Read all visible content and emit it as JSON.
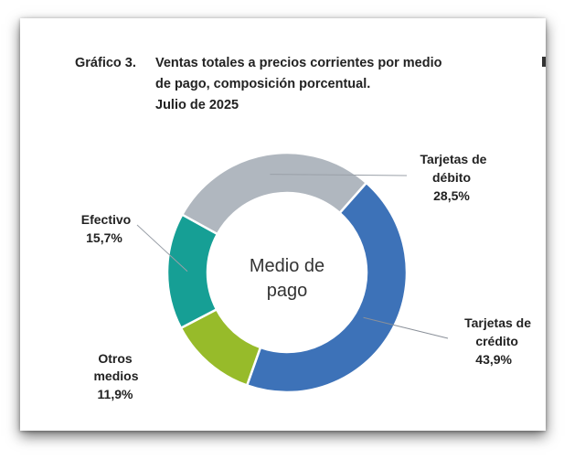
{
  "title": {
    "number": "Gráfico 3.",
    "lines": [
      "Ventas totales a precios corrientes por medio",
      "de pago, composición porcentual.",
      "Julio de 2025"
    ]
  },
  "center_label": [
    "Medio de",
    "pago"
  ],
  "chart_data": {
    "type": "pie",
    "donut": true,
    "title": "Ventas totales a precios corrientes por medio de pago, composición porcentual. Julio de 2025",
    "categories": [
      "Tarjetas de crédito",
      "Otros medios",
      "Efectivo",
      "Tarjetas de débito"
    ],
    "values": [
      43.9,
      11.9,
      15.7,
      28.5
    ],
    "value_labels": [
      "43,9%",
      "11,9%",
      "15,7%",
      "28,5%"
    ],
    "colors": [
      "#3d72b8",
      "#97bb2a",
      "#169f95",
      "#b0b7bf"
    ],
    "center_text": "Medio de pago",
    "labels": [
      {
        "name_lines": [
          "Tarjetas de",
          "crédito"
        ],
        "value": "43,9%"
      },
      {
        "name_lines": [
          "Otros",
          "medios"
        ],
        "value": "11,9%"
      },
      {
        "name_lines": [
          "Efectivo"
        ],
        "value": "15,7%"
      },
      {
        "name_lines": [
          "Tarjetas de",
          "débito"
        ],
        "value": "28,5%"
      }
    ]
  }
}
